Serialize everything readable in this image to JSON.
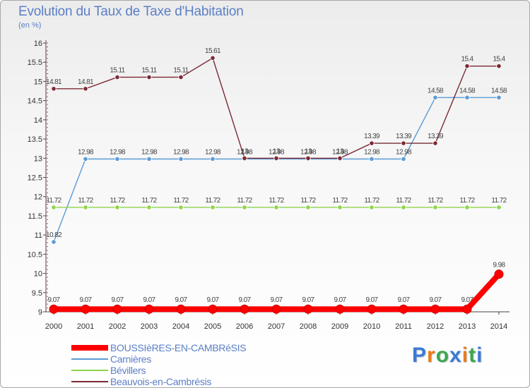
{
  "chart_data": {
    "type": "line",
    "title": "Evolution du Taux de Taxe d'Habitation",
    "subtitle": "(en %)",
    "xlabel": "",
    "ylabel": "(en %)",
    "ylim": [
      9,
      16
    ],
    "yticks": [
      "9",
      "9.5",
      "10",
      "10.5",
      "11",
      "11.5",
      "12",
      "12.5",
      "13",
      "13.5",
      "14",
      "14.5",
      "15",
      "15.5",
      "16"
    ],
    "categories": [
      "2000",
      "2001",
      "2002",
      "2003",
      "2004",
      "2005",
      "2006",
      "2007",
      "2008",
      "2009",
      "2010",
      "2011",
      "2012",
      "2013",
      "2014"
    ],
    "grid": false,
    "legend_position": "bottom-left",
    "series": [
      {
        "name": "BOUSSIèRES-EN-CAMBRéSIS",
        "color": "#ff0000",
        "values": [
          9.07,
          9.07,
          9.07,
          9.07,
          9.07,
          9.07,
          9.07,
          9.07,
          9.07,
          9.07,
          9.07,
          9.07,
          9.07,
          9.07,
          9.98
        ],
        "labels": [
          "9.07",
          "9.07",
          "9.07",
          "9.07",
          "9.07",
          "9.07",
          "9.07",
          "9.07",
          "9.07",
          "9.07",
          "9.07",
          "9.07",
          "9.07",
          "9.07",
          "9.98"
        ]
      },
      {
        "name": "Carnières",
        "color": "#5b9bd5",
        "values": [
          10.82,
          12.98,
          12.98,
          12.98,
          12.98,
          12.98,
          12.98,
          12.98,
          12.98,
          12.98,
          12.98,
          12.98,
          14.58,
          14.58,
          14.58
        ],
        "labels": [
          "10.82",
          "12.98",
          "12.98",
          "12.98",
          "12.98",
          "12.98",
          "12.98",
          "12.98",
          "12.98",
          "12.98",
          "12.98",
          "12.98",
          "14.58",
          "14.58",
          "14.58"
        ]
      },
      {
        "name": "Bévillers",
        "color": "#8ed44a",
        "values": [
          11.72,
          11.72,
          11.72,
          11.72,
          11.72,
          11.72,
          11.72,
          11.72,
          11.72,
          11.72,
          11.72,
          11.72,
          11.72,
          11.72,
          11.72
        ],
        "labels": [
          "11.72",
          "11.72",
          "11.72",
          "11.72",
          "11.72",
          "11.72",
          "11.72",
          "11.72",
          "11.72",
          "11.72",
          "11.72",
          "11.72",
          "11.72",
          "11.72",
          "11.72"
        ]
      },
      {
        "name": "Beauvois-en-Cambrésis",
        "color": "#7a2a35",
        "values": [
          14.81,
          14.81,
          15.11,
          15.11,
          15.11,
          15.61,
          13,
          13,
          13,
          13,
          13.39,
          13.39,
          13.39,
          15.4,
          15.4
        ],
        "labels": [
          "14.81",
          "14.81",
          "15.11",
          "15.11",
          "15.11",
          "15.61",
          "13",
          "13",
          "13",
          "13",
          "13.39",
          "13.39",
          "13.39",
          "15.4",
          "15.4"
        ]
      }
    ]
  },
  "logo": {
    "letters": [
      "P",
      "r",
      "o",
      "x",
      "i",
      "t",
      "i"
    ],
    "colors": [
      "#3a7bd5",
      "#e87d1e",
      "#3aa84f",
      "#3a7bd5",
      "#e87d1e",
      "#3aa84f",
      "#3a7bd5"
    ]
  }
}
